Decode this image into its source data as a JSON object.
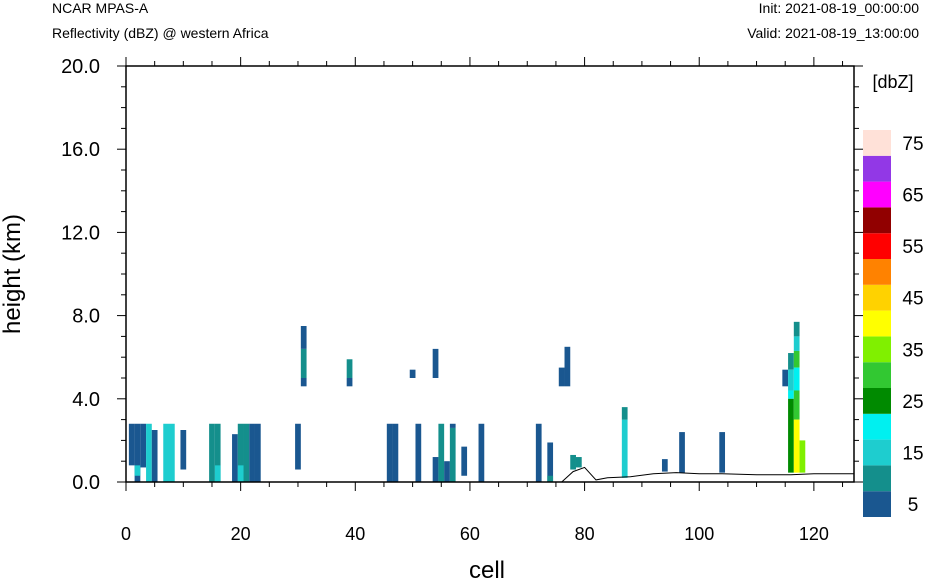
{
  "header": {
    "model": "NCAR MPAS-A",
    "field": "Reflectivity (dBZ) @ western Africa",
    "init": "Init: 2021-08-19_00:00:00",
    "valid": "Valid: 2021-08-19_13:00:00"
  },
  "chart_data": {
    "type": "heatmap",
    "xlabel": "cell",
    "ylabel": "height (km)",
    "xlim": [
      0,
      127
    ],
    "ylim": [
      0,
      20
    ],
    "x_ticks": [
      "0",
      "20",
      "40",
      "60",
      "80",
      "100",
      "120"
    ],
    "y_ticks": [
      "0.0",
      "4.0",
      "8.0",
      "12.0",
      "16.0",
      "20.0"
    ],
    "colorbar": {
      "title": "[dbZ]",
      "levels": [
        5,
        10,
        15,
        20,
        25,
        30,
        35,
        40,
        45,
        50,
        55,
        60,
        65,
        70,
        75
      ],
      "labels": [
        "5",
        "15",
        "25",
        "35",
        "45",
        "55",
        "65",
        "75"
      ],
      "colors": [
        "#1a5790",
        "#148f8c",
        "#1ecdcf",
        "#00f0f0",
        "#008a00",
        "#32c832",
        "#80f000",
        "#ffff00",
        "#ffd200",
        "#ff8200",
        "#ff0000",
        "#910000",
        "#ff00ff",
        "#9238e6",
        "#ffe1d8"
      ]
    },
    "terrain_km": [
      [
        0,
        0.0
      ],
      [
        76,
        0.0
      ],
      [
        78,
        0.5
      ],
      [
        80,
        0.7
      ],
      [
        82,
        0.1
      ],
      [
        84,
        0.2
      ],
      [
        88,
        0.25
      ],
      [
        92,
        0.4
      ],
      [
        96,
        0.45
      ],
      [
        100,
        0.4
      ],
      [
        104,
        0.4
      ],
      [
        110,
        0.35
      ],
      [
        116,
        0.35
      ],
      [
        120,
        0.4
      ],
      [
        127,
        0.4
      ]
    ],
    "cells": [
      [
        1,
        0.8,
        2.8,
        5
      ],
      [
        2,
        0.0,
        2.8,
        5
      ],
      [
        3,
        0.7,
        2.8,
        5
      ],
      [
        2,
        0.3,
        0.8,
        15
      ],
      [
        4,
        0.0,
        2.8,
        15
      ],
      [
        5,
        0.0,
        2.5,
        5
      ],
      [
        7,
        0.0,
        2.8,
        15
      ],
      [
        8,
        0.0,
        2.8,
        15
      ],
      [
        10,
        0.6,
        2.5,
        5
      ],
      [
        15,
        0.0,
        2.8,
        10
      ],
      [
        16,
        0.0,
        2.8,
        10
      ],
      [
        16,
        0.0,
        0.8,
        15
      ],
      [
        19,
        0.0,
        2.3,
        5
      ],
      [
        20,
        0.0,
        2.8,
        10
      ],
      [
        21,
        0.0,
        2.8,
        10
      ],
      [
        20,
        0.0,
        0.8,
        15
      ],
      [
        22,
        0.0,
        2.8,
        5
      ],
      [
        23,
        0.0,
        2.8,
        5
      ],
      [
        30,
        0.6,
        2.8,
        5
      ],
      [
        31,
        4.6,
        5.0,
        5
      ],
      [
        31,
        5.0,
        6.4,
        10
      ],
      [
        31,
        6.4,
        7.5,
        5
      ],
      [
        39,
        4.6,
        5.0,
        5
      ],
      [
        39,
        5.0,
        5.9,
        10
      ],
      [
        46,
        0.0,
        2.8,
        5
      ],
      [
        47,
        0.0,
        2.8,
        5
      ],
      [
        51,
        0.0,
        2.8,
        5
      ],
      [
        50,
        5.0,
        5.4,
        5
      ],
      [
        54,
        5.0,
        6.4,
        5
      ],
      [
        54,
        0.0,
        1.2,
        5
      ],
      [
        55,
        0.0,
        2.8,
        10
      ],
      [
        56,
        0.0,
        1.0,
        5
      ],
      [
        57,
        0.0,
        2.6,
        10
      ],
      [
        57,
        2.6,
        2.8,
        5
      ],
      [
        59,
        0.3,
        1.7,
        5
      ],
      [
        62,
        0.0,
        2.8,
        5
      ],
      [
        72,
        0.0,
        2.8,
        5
      ],
      [
        74,
        0.0,
        1.9,
        5
      ],
      [
        74,
        0.0,
        0.3,
        10
      ],
      [
        76,
        4.6,
        5.5,
        5
      ],
      [
        77,
        4.6,
        6.5,
        5
      ],
      [
        78,
        0.6,
        1.3,
        10
      ],
      [
        79,
        0.7,
        1.2,
        10
      ],
      [
        87,
        0.2,
        3.0,
        15
      ],
      [
        87,
        3.0,
        3.6,
        10
      ],
      [
        94,
        0.5,
        1.1,
        5
      ],
      [
        97,
        0.45,
        2.4,
        5
      ],
      [
        104,
        0.45,
        2.4,
        5
      ],
      [
        115,
        4.6,
        5.4,
        5
      ],
      [
        116,
        5.4,
        6.2,
        10
      ],
      [
        116,
        4.4,
        5.4,
        15
      ],
      [
        116,
        4.0,
        4.4,
        20
      ],
      [
        116,
        0.45,
        4.0,
        25
      ],
      [
        117,
        7.0,
        7.7,
        10
      ],
      [
        117,
        6.3,
        7.0,
        15
      ],
      [
        117,
        5.5,
        6.3,
        30
      ],
      [
        117,
        4.4,
        5.5,
        20
      ],
      [
        117,
        3.0,
        4.4,
        30
      ],
      [
        117,
        0.45,
        3.0,
        40
      ],
      [
        118,
        0.45,
        2.0,
        35
      ]
    ]
  }
}
